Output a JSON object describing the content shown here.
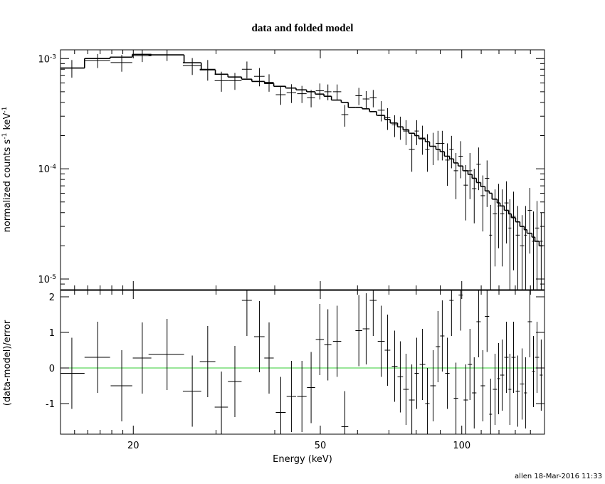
{
  "footer": "allen 18-Mar-2016 11:33",
  "chart_data": {
    "type": "spectrum",
    "title": "data and folded model",
    "xlabel": "Energy (keV)",
    "xlog": true,
    "xlim": [
      14,
      150
    ],
    "xticks": [
      20,
      50,
      100
    ],
    "xminorticks": [
      15,
      16,
      17,
      18,
      19,
      30,
      40,
      60,
      70,
      80,
      90,
      110,
      120,
      130,
      140
    ],
    "x": [
      14.8,
      16.8,
      18.9,
      20.9,
      23.6,
      26.7,
      28.8,
      30.8,
      32.9,
      34.9,
      37.1,
      38.9,
      41.2,
      43.4,
      45.7,
      47.8,
      49.9,
      51.9,
      54.3,
      56.4,
      60.4,
      62.6,
      64.8,
      67.4,
      69.5,
      72.0,
      74.0,
      76.1,
      78.3,
      80.2,
      82.5,
      84.5,
      86.9,
      89.0,
      90.9,
      93.2,
      95.1,
      97.2,
      99.5,
      102.0,
      104.1,
      106.3,
      108.6,
      110.9,
      113.2,
      115.2,
      117.7,
      119.8,
      121.9,
      124.5,
      126.6,
      128.9,
      131.6,
      134.4,
      136.7,
      139.6,
      142.1,
      144.6,
      147.6
    ],
    "xerr": [
      0.95,
      1.05,
      1.0,
      0.95,
      2.05,
      1.2,
      1.1,
      1.0,
      1.1,
      0.85,
      0.95,
      0.9,
      1.0,
      1.0,
      1.05,
      0.95,
      1.0,
      0.9,
      1.1,
      0.95,
      1.0,
      1.05,
      1.1,
      1.15,
      0.95,
      1.0,
      1.0,
      1.05,
      1.1,
      0.85,
      1.15,
      0.9,
      1.2,
      0.95,
      0.95,
      1.0,
      1.0,
      1.05,
      1.05,
      1.1,
      1.1,
      1.15,
      1.15,
      1.2,
      1.2,
      0.8,
      1.25,
      0.85,
      1.25,
      1.3,
      0.9,
      1.3,
      1.35,
      1.4,
      0.95,
      1.45,
      1.0,
      1.5,
      1.05
    ],
    "top": {
      "ylabel": "normalized counts s^-1 keV^-1",
      "ylog": true,
      "ylim": [
        8e-06,
        0.0012
      ],
      "yticks": [
        {
          "value": 0.001,
          "label": "10^-3"
        },
        {
          "value": 0.0001,
          "label": "10^-4"
        },
        {
          "value": 1e-05,
          "label": "10^-5"
        }
      ],
      "yminorticks": [
        9e-06,
        2e-05,
        3e-05,
        4e-05,
        5e-05,
        6e-05,
        7e-05,
        8e-05,
        9e-05,
        0.0002,
        0.0003,
        0.0004,
        0.0005,
        0.0006,
        0.0007,
        0.0008,
        0.0009
      ],
      "data": {
        "color": "#000000",
        "values": [
          0.00082,
          0.00096,
          0.00092,
          0.00106,
          0.00108,
          0.00086,
          0.0008,
          0.00063,
          0.00063,
          0.0008,
          0.00069,
          0.00061,
          0.00047,
          0.00049,
          0.00048,
          0.00044,
          0.00051,
          0.0005,
          0.0005,
          0.00031,
          0.00046,
          0.00043,
          0.00044,
          0.00034,
          0.00029,
          0.00025,
          0.00024,
          0.00022,
          0.00015,
          0.00022,
          0.00019,
          0.00015,
          0.00016,
          0.00017,
          0.00017,
          0.00012,
          0.00015,
          9.6e-05,
          0.00013,
          7.1e-05,
          9.6e-05,
          6.6e-05,
          0.00011,
          5.7e-05,
          8.2e-05,
          2.5e-05,
          3.9e-05,
          4.6e-05,
          3.9e-05,
          4.9e-05,
          2.9e-05,
          3.7e-05,
          2.5e-05,
          2e-05,
          2.5e-05,
          4.2e-05,
          2.2e-05,
          2.9e-05,
          2.2e-05
        ],
        "errors": [
          0.00015,
          0.00014,
          0.00016,
          0.00013,
          0.00013,
          0.00015,
          0.00017,
          0.00013,
          0.00011,
          0.00014,
          0.00013,
          0.00011,
          9e-05,
          9.5e-05,
          8.5e-05,
          7.9e-05,
          8.4e-05,
          8.2e-05,
          8.2e-05,
          6.9e-05,
          8.2e-05,
          7.7e-05,
          7.9e-05,
          7.1e-05,
          6.5e-05,
          5.6e-05,
          5.7e-05,
          5.6e-05,
          5.6e-05,
          5.6e-05,
          5.6e-05,
          5.6e-05,
          5.2e-05,
          5.1e-05,
          5.1e-05,
          5e-05,
          4.9e-05,
          4.3e-05,
          4.8e-05,
          3.7e-05,
          4.3e-05,
          3.4e-05,
          4.6e-05,
          3e-05,
          3.7e-05,
          2.2e-05,
          2.6e-05,
          2.7e-05,
          2.6e-05,
          2.8e-05,
          2.4e-05,
          2.5e-05,
          2.1e-05,
          1.8e-05,
          2.1e-05,
          2.5e-05,
          1.9e-05,
          2.2e-05,
          1.8e-05
        ]
      },
      "model": {
        "color": "#000000",
        "values": [
          0.00082,
          0.001,
          0.00103,
          0.00109,
          0.00108,
          0.000915,
          0.00079,
          0.00072,
          0.00068,
          0.00065,
          0.00062,
          0.000595,
          0.00056,
          0.00054,
          0.00052,
          0.0005,
          0.000476,
          0.000455,
          0.00042,
          0.0004,
          0.00036,
          0.00035,
          0.00033,
          0.000305,
          0.00028,
          0.00026,
          0.00024,
          0.000226,
          0.00021,
          0.0002,
          0.000187,
          0.000176,
          0.00016,
          0.00015,
          0.000143,
          0.00013,
          0.000123,
          0.000113,
          0.000106,
          9.6e-05,
          8.9e-05,
          8.2e-05,
          7.5e-05,
          6.9e-05,
          6.3e-05,
          6e-05,
          5.3e-05,
          4.9e-05,
          4.6e-05,
          4.2e-05,
          3.9e-05,
          3.6e-05,
          3.3e-05,
          3e-05,
          2.8e-05,
          2.6e-05,
          2.4e-05,
          2.2e-05,
          2e-05
        ]
      }
    },
    "bottom": {
      "ylabel": "(data-model)/error",
      "ylim": [
        -1.86,
        2.18
      ],
      "yticks": [
        -1,
        0,
        1,
        2
      ],
      "color": "#000000",
      "zero_line_color": "#33cc33",
      "values": [
        -0.15,
        0.3,
        -0.5,
        0.28,
        0.38,
        -0.65,
        0.18,
        -1.1,
        -0.38,
        1.9,
        0.88,
        0.28,
        -1.25,
        -0.8,
        -0.8,
        -0.55,
        0.8,
        0.65,
        0.75,
        -1.65,
        1.05,
        1.1,
        1.9,
        0.75,
        0.5,
        0.05,
        -0.25,
        -0.6,
        -0.9,
        -0.15,
        0.1,
        -1.0,
        -0.5,
        0.6,
        0.9,
        -0.15,
        1.9,
        -0.85,
        2.05,
        -0.9,
        0.1,
        -0.7,
        1.3,
        -0.5,
        1.45,
        -1.3,
        -0.6,
        -0.3,
        -0.2,
        0.3,
        -0.6,
        0.3,
        -0.65,
        -0.45,
        -0.7,
        1.3,
        -0.1,
        0.3,
        -0.2
      ],
      "errors": [
        1,
        1,
        1,
        1,
        1,
        1,
        1,
        1,
        1,
        1,
        1,
        1,
        1,
        1,
        1,
        1,
        1,
        1,
        1,
        1,
        1,
        1,
        1,
        1,
        1,
        1,
        1,
        1,
        1,
        1,
        1,
        1,
        1,
        1,
        1,
        1,
        1,
        1,
        1,
        1,
        1,
        1,
        1,
        1,
        1,
        1,
        1,
        1,
        1,
        1,
        1,
        1,
        1,
        1,
        1,
        1,
        1,
        1,
        1
      ]
    }
  }
}
